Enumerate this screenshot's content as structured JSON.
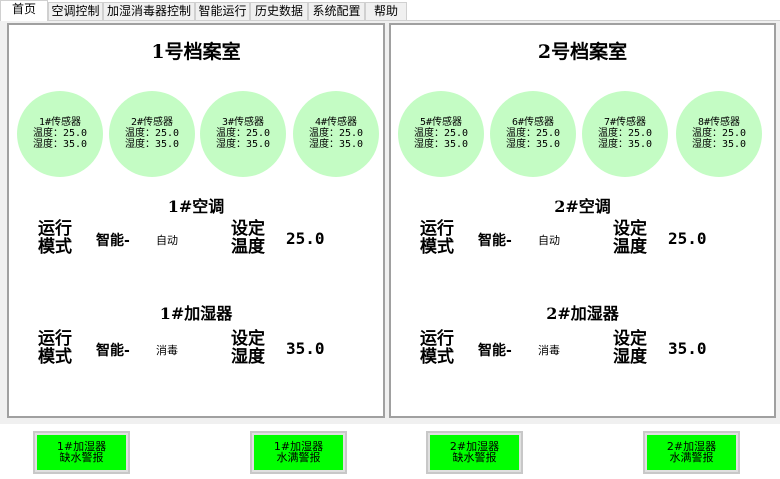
{
  "tabs": [
    "首页",
    "空调控制",
    "加湿消毒器控制",
    "智能运行",
    "历史数据",
    "系统配置",
    "帮助"
  ],
  "rooms": [
    {
      "title": "1号档案室",
      "sensors": [
        {
          "name": "1#传感器",
          "temp": "温度：25.0",
          "hum": "湿度：35.0"
        },
        {
          "name": "2#传感器",
          "temp": "温度：25.0",
          "hum": "湿度：35.0"
        },
        {
          "name": "3#传感器",
          "temp": "温度：25.0",
          "hum": "湿度：35.0"
        },
        {
          "name": "4#传感器",
          "temp": "温度：25.0",
          "hum": "湿度：35.0"
        }
      ],
      "ac": {
        "title": "1#空调",
        "mode_label_1": "运行",
        "mode_label_2": "模式",
        "mode": "智能-",
        "mode_value": "自动",
        "set_label_1": "设定",
        "set_label_2": "温度",
        "set_value": "25.0"
      },
      "hum": {
        "title": "1#加湿器",
        "mode_label_1": "运行",
        "mode_label_2": "模式",
        "mode": "智能-",
        "mode_value": "消毒",
        "set_label_1": "设定",
        "set_label_2": "湿度",
        "set_value": "35.0"
      }
    },
    {
      "title": "2号档案室",
      "sensors": [
        {
          "name": "5#传感器",
          "temp": "温度：25.0",
          "hum": "湿度：35.0"
        },
        {
          "name": "6#传感器",
          "temp": "温度：25.0",
          "hum": "湿度：35.0"
        },
        {
          "name": "7#传感器",
          "temp": "温度：25.0",
          "hum": "湿度：35.0"
        },
        {
          "name": "8#传感器",
          "temp": "温度：25.0",
          "hum": "湿度：35.0"
        }
      ],
      "ac": {
        "title": "2#空调",
        "mode_label_1": "运行",
        "mode_label_2": "模式",
        "mode": "智能-",
        "mode_value": "自动",
        "set_label_1": "设定",
        "set_label_2": "温度",
        "set_value": "25.0"
      },
      "hum": {
        "title": "2#加湿器",
        "mode_label_1": "运行",
        "mode_label_2": "模式",
        "mode": "智能-",
        "mode_value": "消毒",
        "set_label_1": "设定",
        "set_label_2": "湿度",
        "set_value": "35.0"
      }
    }
  ],
  "alarms": [
    {
      "line1": "1#加湿器",
      "line2": "缺水警报"
    },
    {
      "line1": "1#加湿器",
      "line2": "水满警报"
    },
    {
      "line1": "2#加湿器",
      "line2": "缺水警报"
    },
    {
      "line1": "2#加湿器",
      "line2": "水满警报"
    }
  ],
  "colors": {
    "sensor_bg": "#c4fcc4",
    "alarm_bg": "#00ff00"
  }
}
